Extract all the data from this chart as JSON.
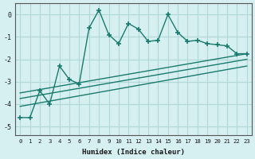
{
  "xlabel": "Humidex (Indice chaleur)",
  "bg_color": "#d6eff0",
  "grid_color": "#b0d8d8",
  "line_color": "#1a7a6e",
  "xlim": [
    -0.5,
    23.5
  ],
  "ylim": [
    -5.4,
    0.5
  ],
  "xticks": [
    0,
    1,
    2,
    3,
    4,
    5,
    6,
    7,
    8,
    9,
    10,
    11,
    12,
    13,
    14,
    15,
    16,
    17,
    18,
    19,
    20,
    21,
    22,
    23
  ],
  "yticks": [
    0,
    -1,
    -2,
    -3,
    -4,
    -5
  ],
  "main_x": [
    0,
    1,
    2,
    3,
    4,
    5,
    6,
    7,
    8,
    9,
    10,
    11,
    12,
    13,
    14,
    15,
    16,
    17,
    18,
    19,
    20,
    21,
    22,
    23
  ],
  "main_y": [
    -4.6,
    -4.6,
    -3.4,
    -4.0,
    -2.3,
    -2.9,
    -3.1,
    -0.6,
    0.2,
    -0.9,
    -1.3,
    -0.4,
    -0.65,
    -1.2,
    -1.15,
    0.0,
    -0.8,
    -1.2,
    -1.15,
    -1.3,
    -1.35,
    -1.4,
    -1.75,
    -1.75
  ],
  "line1_x": [
    0,
    23
  ],
  "line1_y": [
    -3.5,
    -1.75
  ],
  "line2_x": [
    0,
    23
  ],
  "line2_y": [
    -3.75,
    -2.0
  ],
  "line3_x": [
    0,
    23
  ],
  "line3_y": [
    -4.1,
    -2.3
  ]
}
